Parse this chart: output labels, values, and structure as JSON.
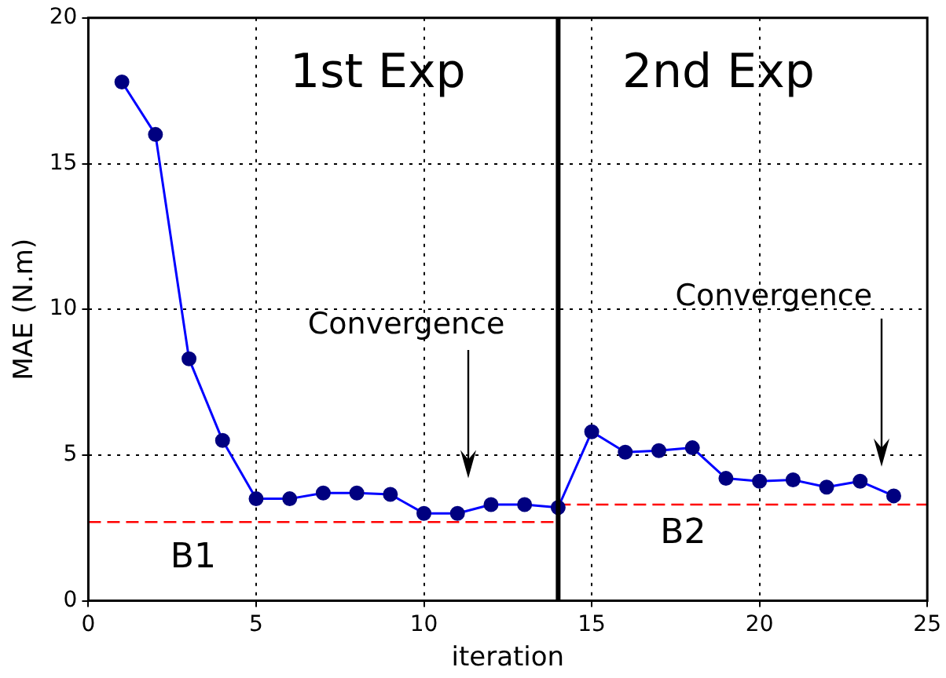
{
  "chart_data": {
    "type": "line",
    "xlabel": "iteration",
    "ylabel": "MAE (N.m)",
    "x": [
      1,
      2,
      3,
      4,
      5,
      6,
      7,
      8,
      9,
      10,
      11,
      12,
      13,
      14,
      15,
      16,
      17,
      18,
      19,
      20,
      21,
      22,
      23,
      24
    ],
    "series": [
      {
        "color": "#0000ff",
        "values": [
          17.8,
          16.0,
          8.3,
          5.5,
          3.5,
          3.5,
          3.7,
          3.7,
          3.65,
          3.0,
          3.0,
          3.3,
          3.3,
          3.2,
          5.8,
          5.1,
          5.15,
          5.25,
          4.2,
          4.1,
          4.15,
          3.9,
          4.1,
          3.6
        ],
        "marker": "circle",
        "line_style": "solid"
      },
      {
        "type": "line",
        "x": [
          0,
          14
        ],
        "color": "#ff0000",
        "values": [
          2.7,
          2.7
        ],
        "marker": "none",
        "line_style": "dashed"
      },
      {
        "type": "line",
        "x": [
          14,
          25
        ],
        "color": "#ff0000",
        "values": [
          3.3,
          3.3
        ],
        "marker": "none",
        "line_style": "dashed"
      }
    ],
    "xlim": [
      0,
      25
    ],
    "xticks": [
      0,
      5,
      10,
      15,
      20,
      25
    ],
    "ylim": [
      0,
      20
    ],
    "yticks": [
      0,
      5,
      10,
      15,
      20
    ],
    "grid": true,
    "legend": false,
    "ref_lines": [
      {
        "axis": "x",
        "value": 14,
        "color": "#000000",
        "line_style": "solid"
      }
    ],
    "annotations": [
      "1st Exp",
      "2nd Exp",
      "Convergence",
      "Convergence",
      "B1",
      "B2"
    ]
  }
}
